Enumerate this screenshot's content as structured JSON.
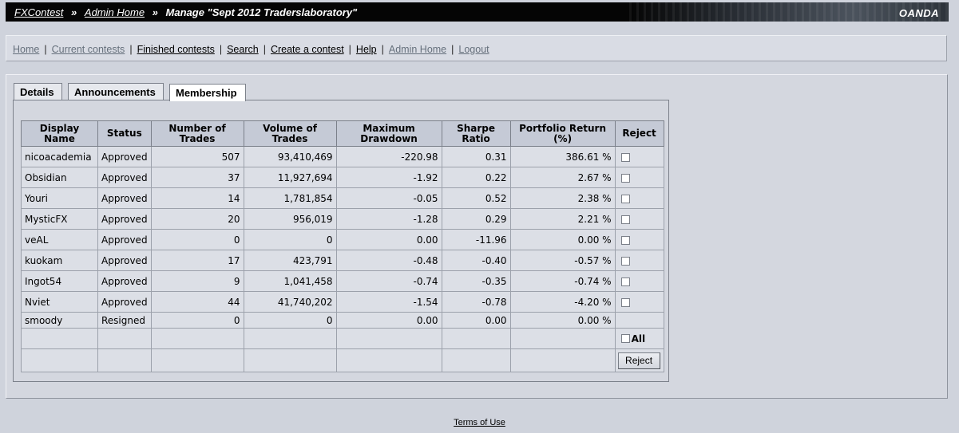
{
  "header": {
    "crumbs": [
      "FXContest",
      "Admin Home"
    ],
    "separator": "»",
    "current": "Manage \"Sept 2012 Traderslaboratory\"",
    "brand": "OANDA"
  },
  "nav": {
    "separator": "|",
    "links": [
      "Home",
      "Current contests",
      "Finished contests",
      "Search",
      "Create a contest",
      "Help",
      "Admin Home",
      "Logout"
    ]
  },
  "tabs": [
    "Details",
    "Announcements",
    "Membership"
  ],
  "table": {
    "headers": [
      "Display Name",
      "Status",
      "Number of Trades",
      "Volume of Trades",
      "Maximum Drawdown",
      "Sharpe Ratio",
      "Portfolio Return (%)",
      "Reject"
    ],
    "rows": [
      {
        "name": "nicoacademia",
        "status": "Approved",
        "trades": "507",
        "volume": "93,410,469",
        "drawdown": "-220.98",
        "sharpe": "0.31",
        "return": "386.61 %",
        "reject": true
      },
      {
        "name": "Obsidian",
        "status": "Approved",
        "trades": "37",
        "volume": "11,927,694",
        "drawdown": "-1.92",
        "sharpe": "0.22",
        "return": "2.67 %",
        "reject": true
      },
      {
        "name": "Youri",
        "status": "Approved",
        "trades": "14",
        "volume": "1,781,854",
        "drawdown": "-0.05",
        "sharpe": "0.52",
        "return": "2.38 %",
        "reject": true
      },
      {
        "name": "MysticFX",
        "status": "Approved",
        "trades": "20",
        "volume": "956,019",
        "drawdown": "-1.28",
        "sharpe": "0.29",
        "return": "2.21 %",
        "reject": true
      },
      {
        "name": "veAL",
        "status": "Approved",
        "trades": "0",
        "volume": "0",
        "drawdown": "0.00",
        "sharpe": "-11.96",
        "return": "0.00 %",
        "reject": true
      },
      {
        "name": "kuokam",
        "status": "Approved",
        "trades": "17",
        "volume": "423,791",
        "drawdown": "-0.48",
        "sharpe": "-0.40",
        "return": "-0.57 %",
        "reject": true
      },
      {
        "name": "Ingot54",
        "status": "Approved",
        "trades": "9",
        "volume": "1,041,458",
        "drawdown": "-0.74",
        "sharpe": "-0.35",
        "return": "-0.74 %",
        "reject": true
      },
      {
        "name": "Nviet",
        "status": "Approved",
        "trades": "44",
        "volume": "41,740,202",
        "drawdown": "-1.54",
        "sharpe": "-0.78",
        "return": "-4.20 %",
        "reject": true
      },
      {
        "name": "smoody",
        "status": "Resigned",
        "trades": "0",
        "volume": "0",
        "drawdown": "0.00",
        "sharpe": "0.00",
        "return": "0.00 %",
        "reject": false
      }
    ],
    "all_label": "All",
    "reject_button": "Reject"
  },
  "footer": {
    "terms": "Terms of Use"
  }
}
